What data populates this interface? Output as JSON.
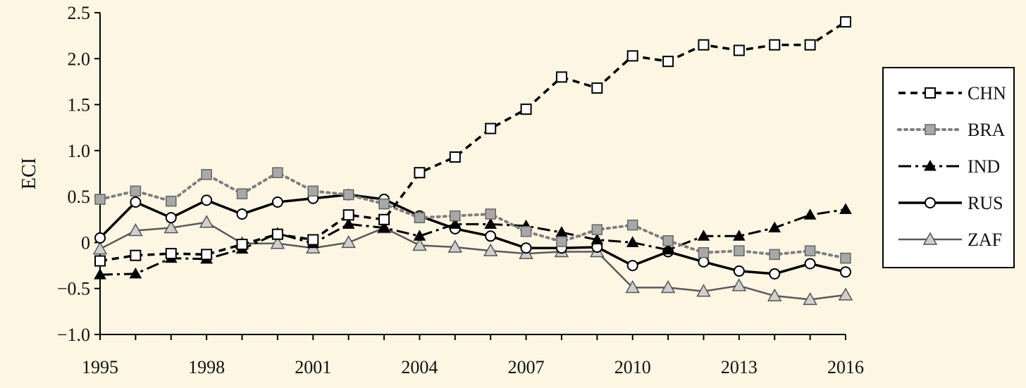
{
  "chart_data": {
    "type": "line",
    "ylabel": "ECI",
    "xlabel": "",
    "ylim": [
      -1.0,
      2.5
    ],
    "xlim": [
      1995,
      2016
    ],
    "x_ticks": [
      "1995",
      "1998",
      "2001",
      "2004",
      "2007",
      "2010",
      "2013",
      "2016"
    ],
    "y_ticks": [
      "−1.0",
      "−0.5",
      "0",
      "0.5",
      "1.0",
      "1.5",
      "2.0",
      "2.5"
    ],
    "y_tick_values": [
      -1.0,
      -0.5,
      0,
      0.5,
      1.0,
      1.5,
      2.0,
      2.5
    ],
    "grid": false,
    "legend_position": "right",
    "x": [
      1995,
      1996,
      1997,
      1998,
      1999,
      2000,
      2001,
      2002,
      2003,
      2004,
      2005,
      2006,
      2007,
      2008,
      2009,
      2010,
      2011,
      2012,
      2013,
      2014,
      2015,
      2016
    ],
    "series": [
      {
        "name": "CHN",
        "marker": "square-open",
        "line": "dashed",
        "color": "#000000",
        "values": [
          -0.2,
          -0.14,
          -0.12,
          -0.13,
          -0.02,
          0.09,
          0.03,
          0.3,
          0.25,
          0.76,
          0.93,
          1.24,
          1.45,
          1.8,
          1.68,
          2.03,
          1.97,
          2.15,
          2.09,
          2.15,
          2.15,
          2.4
        ]
      },
      {
        "name": "BRA",
        "marker": "square-gray",
        "line": "dotted",
        "color": "#7f7f7f",
        "values": [
          0.47,
          0.56,
          0.45,
          0.74,
          0.53,
          0.76,
          0.56,
          0.52,
          0.42,
          0.27,
          0.29,
          0.31,
          0.12,
          0.01,
          0.14,
          0.19,
          0.02,
          -0.11,
          -0.09,
          -0.13,
          -0.09,
          -0.17
        ]
      },
      {
        "name": "IND",
        "marker": "triangle-black",
        "line": "dash-dot",
        "color": "#000000",
        "values": [
          -0.35,
          -0.34,
          -0.17,
          -0.18,
          -0.07,
          0.1,
          -0.01,
          0.2,
          0.16,
          0.07,
          0.2,
          0.2,
          0.18,
          0.11,
          0.03,
          0.0,
          -0.08,
          0.07,
          0.07,
          0.16,
          0.3,
          0.36
        ]
      },
      {
        "name": "RUS",
        "marker": "circle-open",
        "line": "solid",
        "color": "#000000",
        "values": [
          0.05,
          0.44,
          0.27,
          0.46,
          0.31,
          0.44,
          0.48,
          0.52,
          0.47,
          0.29,
          0.15,
          0.07,
          -0.06,
          -0.06,
          -0.05,
          -0.25,
          -0.1,
          -0.21,
          -0.31,
          -0.34,
          -0.23,
          -0.32
        ]
      },
      {
        "name": "ZAF",
        "marker": "triangle-gray",
        "line": "solid-gray",
        "color": "#5a5a5a",
        "values": [
          -0.07,
          0.13,
          0.16,
          0.22,
          -0.01,
          -0.01,
          -0.06,
          0.0,
          0.16,
          -0.03,
          -0.05,
          -0.09,
          -0.12,
          -0.1,
          -0.1,
          -0.49,
          -0.49,
          -0.53,
          -0.47,
          -0.58,
          -0.62,
          -0.57
        ]
      }
    ]
  }
}
